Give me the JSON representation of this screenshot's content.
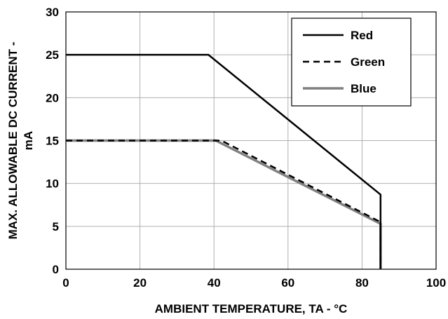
{
  "chart_data": {
    "type": "line",
    "title": "",
    "xlabel": "AMBIENT TEMPERATURE, TA - °C",
    "ylabel_line1": "MAX. ALLOWABLE DC CURRENT -",
    "ylabel_line2": "mA",
    "xlim": [
      0,
      100
    ],
    "ylim": [
      0,
      30
    ],
    "xticks": [
      "0",
      "20",
      "40",
      "60",
      "80",
      "100"
    ],
    "yticks": [
      "0",
      "5",
      "10",
      "15",
      "20",
      "25",
      "30"
    ],
    "grid": true,
    "legend_position": "top-right",
    "series": [
      {
        "name": "Red",
        "color": "#000000",
        "style": "solid",
        "x": [
          0,
          38.5,
          85,
          85
        ],
        "y": [
          25,
          25,
          8.7,
          0
        ]
      },
      {
        "name": "Green",
        "color": "#000000",
        "style": "dashed",
        "x": [
          0,
          42,
          85,
          85
        ],
        "y": [
          15,
          15,
          5.5,
          0
        ]
      },
      {
        "name": "Blue",
        "color": "#808080",
        "style": "solid",
        "x": [
          0,
          40.5,
          85,
          85
        ],
        "y": [
          15,
          15,
          5.3,
          0
        ]
      }
    ]
  }
}
